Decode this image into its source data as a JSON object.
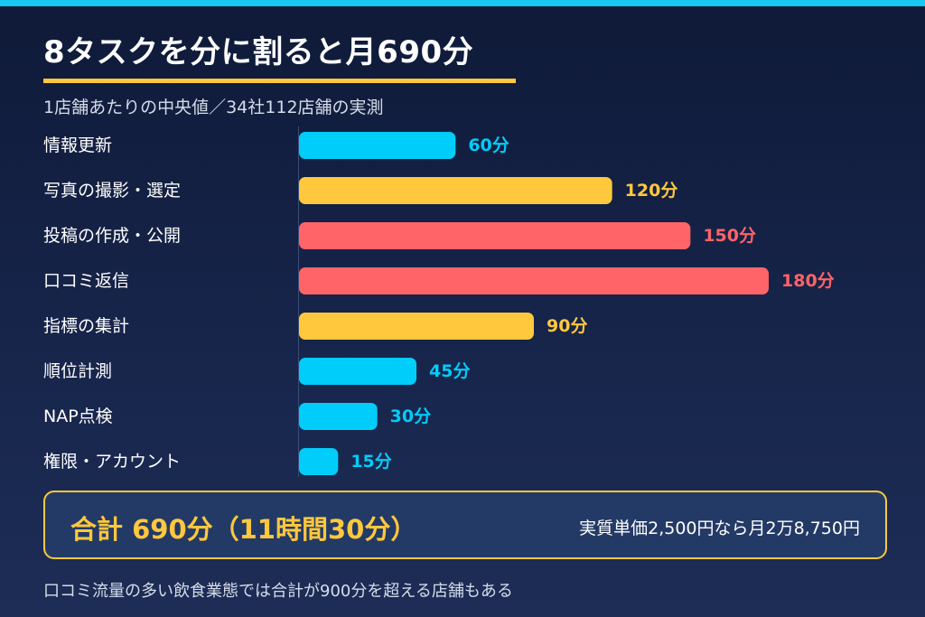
{
  "header": {
    "title": "8タスクを分に割ると月690分",
    "subtitle": "1店舗あたりの中央値／34社112店舗の実測"
  },
  "colors": {
    "cyan": "#00cdfa",
    "yellow": "#ffc83d",
    "red": "#ff6468",
    "accent_bar": "#19c8f0"
  },
  "chart_data": {
    "type": "bar",
    "orientation": "horizontal",
    "unit": "分",
    "categories": [
      "情報更新",
      "写真の撮影・選定",
      "投稿の作成・公開",
      "口コミ返信",
      "指標の集計",
      "順位計測",
      "NAP点検",
      "権限・アカウント"
    ],
    "values": [
      60,
      120,
      150,
      180,
      90,
      45,
      30,
      15
    ],
    "value_labels": [
      "60分",
      "120分",
      "150分",
      "180分",
      "90分",
      "45分",
      "30分",
      "15分"
    ],
    "bar_colors": [
      "#00cdfa",
      "#ffc83d",
      "#ff6468",
      "#ff6468",
      "#ffc83d",
      "#00cdfa",
      "#00cdfa",
      "#00cdfa"
    ],
    "xlim": [
      0,
      180
    ],
    "grid": false,
    "legend": "none"
  },
  "summary": {
    "total_label": "合計 690分（11時間30分）",
    "price_note": "実質単価2,500円なら月2万8,750円"
  },
  "footnote": "口コミ流量の多い飲食業態では合計が900分を超える店舗もある"
}
